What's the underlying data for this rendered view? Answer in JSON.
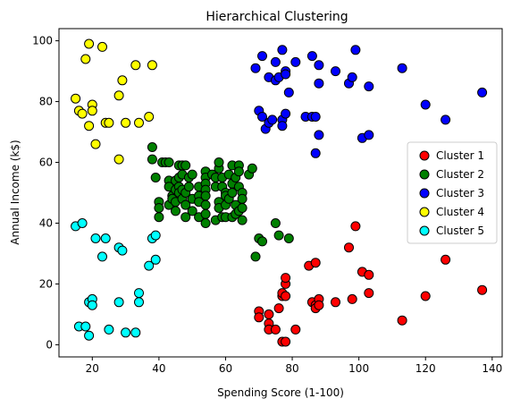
{
  "chart_data": {
    "type": "scatter",
    "title": "Hierarchical Clustering",
    "xlabel": "Spending Score (1-100)",
    "ylabel": "Annual Income (k$)",
    "xlim": [
      10,
      143
    ],
    "ylim": [
      -4,
      104
    ],
    "xticks": [
      20,
      40,
      60,
      80,
      100,
      120,
      140
    ],
    "yticks": [
      0,
      20,
      40,
      60,
      80,
      100
    ],
    "grid": false,
    "legend_position": "center-right",
    "series": [
      {
        "name": "Cluster 1",
        "color": "#ff0000",
        "points": [
          [
            70,
            11
          ],
          [
            70,
            9
          ],
          [
            73,
            7
          ],
          [
            73,
            5
          ],
          [
            73,
            10
          ],
          [
            75,
            5
          ],
          [
            76,
            12
          ],
          [
            77,
            16
          ],
          [
            77,
            17
          ],
          [
            78,
            20
          ],
          [
            78,
            22
          ],
          [
            78,
            16
          ],
          [
            77,
            1
          ],
          [
            78,
            1
          ],
          [
            81,
            5
          ],
          [
            85,
            26
          ],
          [
            86,
            14
          ],
          [
            87,
            27
          ],
          [
            87,
            13
          ],
          [
            87,
            12
          ],
          [
            88,
            15
          ],
          [
            88,
            13
          ],
          [
            93,
            14
          ],
          [
            97,
            32
          ],
          [
            98,
            15
          ],
          [
            99,
            39
          ],
          [
            101,
            24
          ],
          [
            103,
            23
          ],
          [
            103,
            17
          ],
          [
            113,
            8
          ],
          [
            120,
            16
          ],
          [
            126,
            28
          ],
          [
            137,
            18
          ]
        ]
      },
      {
        "name": "Cluster 2",
        "color": "#008000",
        "points": [
          [
            38,
            65
          ],
          [
            38,
            61
          ],
          [
            39,
            55
          ],
          [
            40,
            47
          ],
          [
            40,
            45
          ],
          [
            40,
            42
          ],
          [
            41,
            60
          ],
          [
            42,
            60
          ],
          [
            43,
            60
          ],
          [
            43,
            54
          ],
          [
            43,
            52
          ],
          [
            43,
            46
          ],
          [
            44,
            49
          ],
          [
            44,
            48
          ],
          [
            45,
            54
          ],
          [
            45,
            51
          ],
          [
            45,
            47
          ],
          [
            45,
            44
          ],
          [
            46,
            59
          ],
          [
            46,
            55
          ],
          [
            46,
            52
          ],
          [
            46,
            50
          ],
          [
            47,
            59
          ],
          [
            47,
            56
          ],
          [
            47,
            51
          ],
          [
            47,
            48
          ],
          [
            48,
            59
          ],
          [
            48,
            50
          ],
          [
            48,
            46
          ],
          [
            48,
            42
          ],
          [
            49,
            55
          ],
          [
            49,
            52
          ],
          [
            50,
            56
          ],
          [
            50,
            48
          ],
          [
            50,
            44
          ],
          [
            52,
            52
          ],
          [
            52,
            49
          ],
          [
            52,
            47
          ],
          [
            52,
            42
          ],
          [
            54,
            57
          ],
          [
            54,
            55
          ],
          [
            54,
            53
          ],
          [
            54,
            51
          ],
          [
            54,
            49
          ],
          [
            54,
            46
          ],
          [
            54,
            43
          ],
          [
            54,
            40
          ],
          [
            56,
            56
          ],
          [
            57,
            55
          ],
          [
            57,
            52
          ],
          [
            57,
            41
          ],
          [
            58,
            58
          ],
          [
            58,
            60
          ],
          [
            58,
            47
          ],
          [
            58,
            45
          ],
          [
            59,
            55
          ],
          [
            59,
            52
          ],
          [
            59,
            42
          ],
          [
            60,
            50
          ],
          [
            60,
            49
          ],
          [
            60,
            46
          ],
          [
            60,
            42
          ],
          [
            61,
            56
          ],
          [
            61,
            48
          ],
          [
            62,
            59
          ],
          [
            62,
            53
          ],
          [
            62,
            50
          ],
          [
            62,
            42
          ],
          [
            63,
            55
          ],
          [
            63,
            46
          ],
          [
            63,
            43
          ],
          [
            64,
            59
          ],
          [
            64,
            57
          ],
          [
            64,
            52
          ],
          [
            64,
            44
          ],
          [
            65,
            50
          ],
          [
            65,
            48
          ],
          [
            65,
            45
          ],
          [
            65,
            41
          ],
          [
            67,
            56
          ],
          [
            68,
            58
          ],
          [
            69,
            29
          ],
          [
            70,
            35
          ],
          [
            71,
            34
          ],
          [
            75,
            40
          ],
          [
            76,
            36
          ],
          [
            79,
            35
          ]
        ]
      },
      {
        "name": "Cluster 3",
        "color": "#0000ff",
        "points": [
          [
            69,
            91
          ],
          [
            70,
            77
          ],
          [
            71,
            95
          ],
          [
            71,
            75
          ],
          [
            72,
            71
          ],
          [
            73,
            88
          ],
          [
            73,
            73
          ],
          [
            74,
            74
          ],
          [
            75,
            87
          ],
          [
            75,
            93
          ],
          [
            76,
            88
          ],
          [
            77,
            97
          ],
          [
            77,
            74
          ],
          [
            77,
            72
          ],
          [
            78,
            90
          ],
          [
            78,
            89
          ],
          [
            78,
            76
          ],
          [
            79,
            83
          ],
          [
            81,
            93
          ],
          [
            84,
            75
          ],
          [
            86,
            95
          ],
          [
            86,
            75
          ],
          [
            87,
            63
          ],
          [
            87,
            75
          ],
          [
            88,
            92
          ],
          [
            88,
            86
          ],
          [
            88,
            69
          ],
          [
            93,
            90
          ],
          [
            97,
            86
          ],
          [
            98,
            88
          ],
          [
            99,
            97
          ],
          [
            101,
            68
          ],
          [
            103,
            85
          ],
          [
            103,
            69
          ],
          [
            113,
            91
          ],
          [
            120,
            79
          ],
          [
            126,
            74
          ],
          [
            137,
            83
          ]
        ]
      },
      {
        "name": "Cluster 4",
        "color": "#ffff00",
        "points": [
          [
            15,
            81
          ],
          [
            16,
            77
          ],
          [
            17,
            76
          ],
          [
            18,
            94
          ],
          [
            19,
            99
          ],
          [
            19,
            72
          ],
          [
            20,
            79
          ],
          [
            20,
            77
          ],
          [
            21,
            66
          ],
          [
            23,
            98
          ],
          [
            24,
            73
          ],
          [
            25,
            73
          ],
          [
            28,
            82
          ],
          [
            28,
            61
          ],
          [
            29,
            87
          ],
          [
            30,
            73
          ],
          [
            33,
            92
          ],
          [
            34,
            73
          ],
          [
            37,
            75
          ],
          [
            38,
            92
          ]
        ]
      },
      {
        "name": "Cluster 5",
        "color": "#00ffff",
        "points": [
          [
            15,
            39
          ],
          [
            16,
            6
          ],
          [
            17,
            40
          ],
          [
            18,
            6
          ],
          [
            19,
            14
          ],
          [
            19,
            3
          ],
          [
            20,
            15
          ],
          [
            20,
            13
          ],
          [
            21,
            35
          ],
          [
            23,
            29
          ],
          [
            24,
            35
          ],
          [
            25,
            5
          ],
          [
            28,
            32
          ],
          [
            28,
            14
          ],
          [
            29,
            31
          ],
          [
            30,
            4
          ],
          [
            33,
            4
          ],
          [
            34,
            17
          ],
          [
            34,
            14
          ],
          [
            37,
            26
          ],
          [
            38,
            35
          ],
          [
            39,
            36
          ],
          [
            39,
            28
          ]
        ]
      }
    ]
  }
}
